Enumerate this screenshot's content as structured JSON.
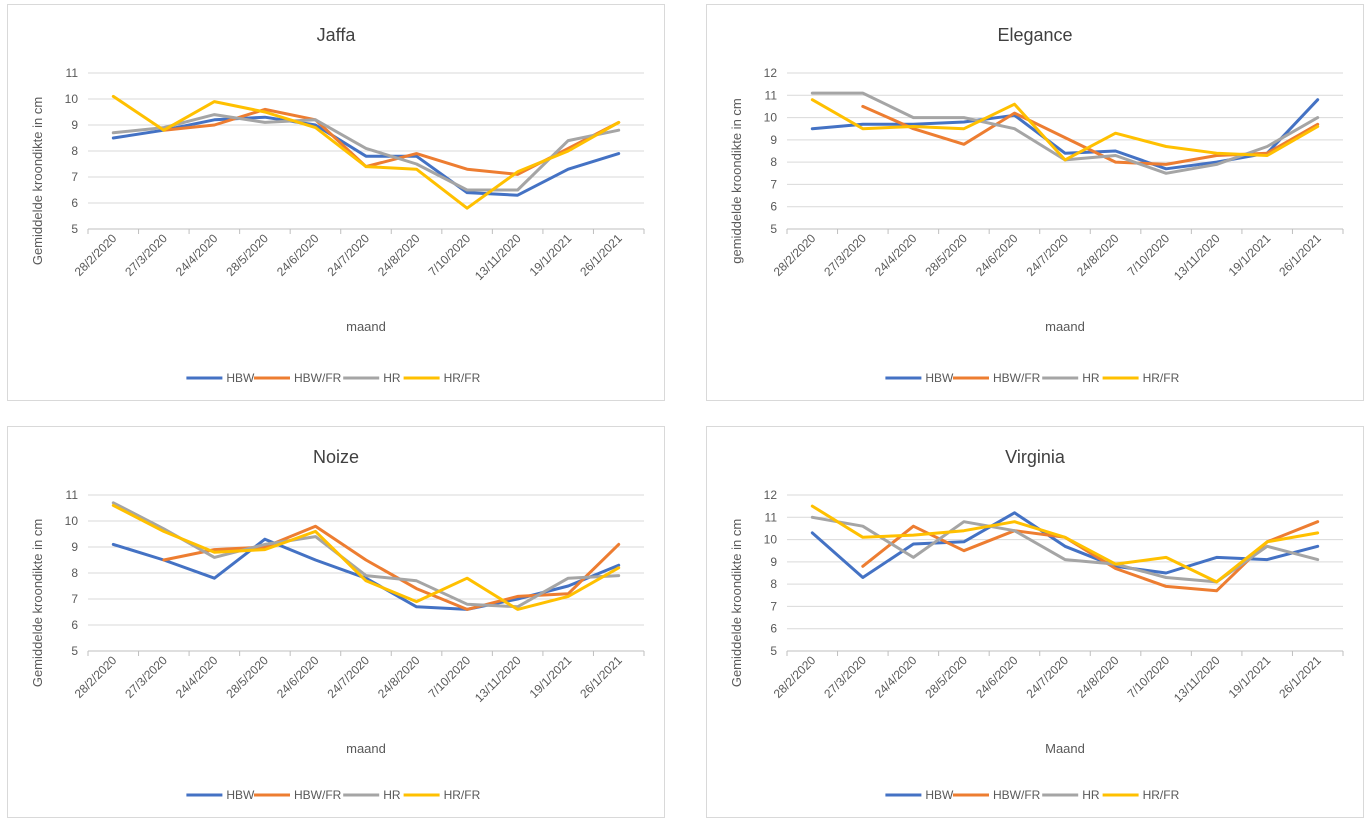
{
  "colors": {
    "HBW": "#4472c4",
    "HBW/FR": "#ed7d31",
    "HR": "#a5a5a5",
    "HR/FR": "#ffc000"
  },
  "chart_data": [
    {
      "type": "line",
      "title": "Jaffa",
      "xlabel": "maand",
      "ylabel": "Gemiddelde kroondikte in cm",
      "ylim": [
        5,
        11
      ],
      "yticks": [
        5,
        6,
        7,
        8,
        9,
        10,
        11
      ],
      "grid": true,
      "legend": "bottom",
      "categories": [
        "28/2/2020",
        "27/3/2020",
        "24/4/2020",
        "28/5/2020",
        "24/6/2020",
        "24/7/2020",
        "24/8/2020",
        "7/10/2020",
        "13/11/2020",
        "19/1/2021",
        "26/1/2021"
      ],
      "series": [
        {
          "name": "HBW",
          "values": [
            8.5,
            8.8,
            9.2,
            9.3,
            9.0,
            7.8,
            7.8,
            6.4,
            6.3,
            7.3,
            7.9
          ]
        },
        {
          "name": "HBW/FR",
          "values": [
            null,
            8.8,
            9.0,
            9.6,
            9.2,
            7.4,
            7.9,
            7.3,
            7.1,
            8.1,
            9.1
          ]
        },
        {
          "name": "HR",
          "values": [
            8.7,
            8.9,
            9.4,
            9.1,
            9.2,
            8.1,
            7.5,
            6.5,
            6.5,
            8.4,
            8.8
          ]
        },
        {
          "name": "HR/FR",
          "values": [
            10.1,
            8.8,
            9.9,
            9.5,
            8.9,
            7.4,
            7.3,
            5.8,
            7.2,
            8.0,
            9.1
          ]
        }
      ]
    },
    {
      "type": "line",
      "title": "Elegance",
      "xlabel": "maand",
      "ylabel": "gemiddelde kroondikte in cm",
      "ylim": [
        5,
        12
      ],
      "yticks": [
        5,
        6,
        7,
        8,
        9,
        10,
        11,
        12
      ],
      "grid": true,
      "legend": "bottom",
      "categories": [
        "28/2/2020",
        "27/3/2020",
        "24/4/2020",
        "28/5/2020",
        "24/6/2020",
        "24/7/2020",
        "24/8/2020",
        "7/10/2020",
        "13/11/2020",
        "19/1/2021",
        "26/1/2021"
      ],
      "series": [
        {
          "name": "HBW",
          "values": [
            9.5,
            9.7,
            9.7,
            9.8,
            10.1,
            8.4,
            8.5,
            7.7,
            8.0,
            8.4,
            10.8
          ]
        },
        {
          "name": "HBW/FR",
          "values": [
            null,
            10.5,
            9.5,
            8.8,
            10.2,
            9.1,
            8.0,
            7.9,
            8.3,
            8.4,
            9.7
          ]
        },
        {
          "name": "HR",
          "values": [
            11.1,
            11.1,
            10.0,
            10.0,
            9.5,
            8.1,
            8.3,
            7.5,
            7.9,
            8.7,
            10.0
          ]
        },
        {
          "name": "HR/FR",
          "values": [
            10.8,
            9.5,
            9.6,
            9.5,
            10.6,
            8.1,
            9.3,
            8.7,
            8.4,
            8.3,
            9.6
          ]
        }
      ]
    },
    {
      "type": "line",
      "title": "Noize",
      "xlabel": "maand",
      "ylabel": "Gemiddelde kroondikte in cm",
      "ylim": [
        5,
        11
      ],
      "yticks": [
        5,
        6,
        7,
        8,
        9,
        10,
        11
      ],
      "grid": true,
      "legend": "bottom",
      "categories": [
        "28/2/2020",
        "27/3/2020",
        "24/4/2020",
        "28/5/2020",
        "24/6/2020",
        "24/7/2020",
        "24/8/2020",
        "7/10/2020",
        "13/11/2020",
        "19/1/2021",
        "26/1/2021"
      ],
      "series": [
        {
          "name": "HBW",
          "values": [
            9.1,
            8.5,
            7.8,
            9.3,
            8.5,
            7.8,
            6.7,
            6.6,
            7.0,
            7.5,
            8.3
          ]
        },
        {
          "name": "HBW/FR",
          "values": [
            null,
            8.5,
            8.9,
            9.0,
            9.8,
            8.5,
            7.4,
            6.6,
            7.1,
            7.2,
            9.1
          ]
        },
        {
          "name": "HR",
          "values": [
            10.7,
            9.7,
            8.6,
            9.1,
            9.4,
            7.9,
            7.7,
            6.8,
            6.7,
            7.8,
            7.9
          ]
        },
        {
          "name": "HR/FR",
          "values": [
            10.6,
            9.6,
            8.8,
            8.9,
            9.6,
            7.7,
            6.9,
            7.8,
            6.6,
            7.1,
            8.2
          ]
        }
      ]
    },
    {
      "type": "line",
      "title": "Virginia",
      "xlabel": "Maand",
      "ylabel": "Gemiddelde kroondikte in cm",
      "ylim": [
        5,
        12
      ],
      "yticks": [
        5,
        6,
        7,
        8,
        9,
        10,
        11,
        12
      ],
      "grid": true,
      "legend": "bottom",
      "categories": [
        "28/2/2020",
        "27/3/2020",
        "24/4/2020",
        "28/5/2020",
        "24/6/2020",
        "24/7/2020",
        "24/8/2020",
        "7/10/2020",
        "13/11/2020",
        "19/1/2021",
        "26/1/2021"
      ],
      "series": [
        {
          "name": "HBW",
          "values": [
            10.3,
            8.3,
            9.8,
            9.9,
            11.2,
            9.7,
            8.8,
            8.5,
            9.2,
            9.1,
            9.7
          ]
        },
        {
          "name": "HBW/FR",
          "values": [
            null,
            8.8,
            10.6,
            9.5,
            10.4,
            10.1,
            8.7,
            7.9,
            7.7,
            9.9,
            10.8
          ]
        },
        {
          "name": "HR",
          "values": [
            11.0,
            10.6,
            9.2,
            10.8,
            10.4,
            9.1,
            8.9,
            8.3,
            8.1,
            9.7,
            9.1
          ]
        },
        {
          "name": "HR/FR",
          "values": [
            11.5,
            10.1,
            10.2,
            10.4,
            10.8,
            10.1,
            8.9,
            9.2,
            8.1,
            9.9,
            10.3
          ]
        }
      ]
    }
  ]
}
